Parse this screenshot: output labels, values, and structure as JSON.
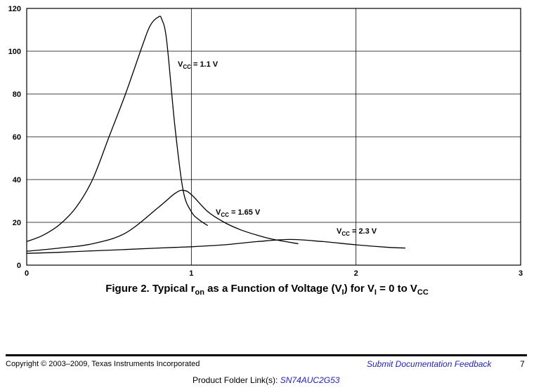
{
  "chart_data": {
    "type": "line",
    "title": "",
    "xlabel": "",
    "ylabel": "",
    "xlim": [
      0,
      3
    ],
    "ylim": [
      0,
      120
    ],
    "xticks": [
      "0",
      "1",
      "2",
      "3"
    ],
    "yticks": [
      "0",
      "20",
      "40",
      "60",
      "80",
      "100",
      "120"
    ],
    "grid": true,
    "series": [
      {
        "name": "VCC = 1.1 V",
        "x": [
          0,
          0.1,
          0.2,
          0.3,
          0.4,
          0.5,
          0.6,
          0.7,
          0.75,
          0.8,
          0.82,
          0.85,
          0.9,
          0.95,
          1.0,
          1.05,
          1.1
        ],
        "y": [
          11,
          14,
          19,
          27,
          40,
          60,
          80,
          102,
          112,
          116,
          115,
          105,
          65,
          35,
          25,
          21,
          18.5
        ]
      },
      {
        "name": "VCC = 1.65 V",
        "x": [
          0,
          0.2,
          0.4,
          0.6,
          0.8,
          0.9,
          0.95,
          1.0,
          1.1,
          1.2,
          1.3,
          1.4,
          1.5,
          1.65
        ],
        "y": [
          6.5,
          8,
          10,
          15,
          27,
          33.5,
          35,
          33,
          25,
          20,
          16.5,
          14,
          12,
          10
        ]
      },
      {
        "name": "VCC = 2.3 V",
        "x": [
          0,
          0.2,
          0.4,
          0.6,
          0.8,
          1.0,
          1.2,
          1.4,
          1.6,
          1.8,
          2.0,
          2.2,
          2.3
        ],
        "y": [
          5.5,
          6,
          6.7,
          7.3,
          8,
          8.6,
          9.5,
          11,
          12,
          11,
          9.5,
          8.3,
          8
        ]
      }
    ]
  },
  "annotations": {
    "vcc_11": {
      "prefix": "V",
      "sub": "CC",
      "suffix": " = 1.1 V"
    },
    "vcc_165": {
      "prefix": "V",
      "sub": "CC",
      "suffix": " = 1.65 V"
    },
    "vcc_23": {
      "prefix": "V",
      "sub": "CC",
      "suffix": " = 2.3 V"
    }
  },
  "caption": {
    "lead": "Figure 2. Typical r",
    "sub1": "on",
    "mid1": " as a Function of Voltage (V",
    "sub2": "I",
    "mid2": ") for V",
    "sub3": "I",
    "mid3": " = 0 to V",
    "sub4": "CC"
  },
  "footer": {
    "copyright": "Copyright © 2003–2009, Texas Instruments Incorporated",
    "feedback": "Submit Documentation Feedback",
    "page_number": "7",
    "folder_label": "Product Folder Link(s): ",
    "folder_link": "SN74AUC2G53"
  }
}
